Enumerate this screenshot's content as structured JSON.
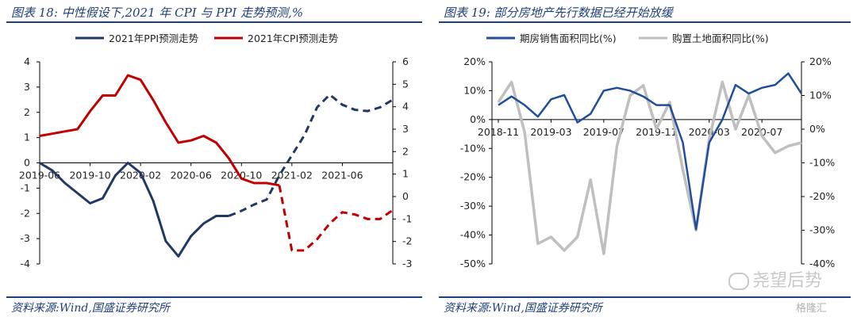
{
  "left": {
    "title": "图表 18:  中性假设下,2021 年 CPI 与 PPI 走势预测,%",
    "source": "资料来源:Wind,国盛证券研究所"
  },
  "right": {
    "title": "图表 19:  部分房地产先行数据已经开始放缓",
    "source": "资料来源:Wind,国盛证券研究所"
  },
  "watermark": "尧望后势",
  "brand": "格隆汇",
  "chart_data": [
    {
      "type": "line",
      "title": "",
      "x_tick_labels": [
        "2019-06",
        "2019-10",
        "2020-02",
        "2020-06",
        "2020-10",
        "2021-02",
        "2021-06"
      ],
      "x_tick_index": [
        0,
        4,
        8,
        12,
        16,
        20,
        24
      ],
      "left_axis": {
        "ylim": [
          -4,
          4
        ],
        "ticks": [
          -4,
          -3,
          -2,
          -1,
          0,
          1,
          2,
          3,
          4
        ]
      },
      "right_axis": {
        "ylim": [
          -3,
          6
        ],
        "ticks": [
          -3,
          -2,
          -1,
          0,
          1,
          2,
          3,
          4,
          5,
          6
        ]
      },
      "colors": {
        "ppi": "#1f3864",
        "cpi": "#c00000"
      },
      "series": [
        {
          "name": "2021年PPI预测走势",
          "axis": "left",
          "color": "#1f3864",
          "x": [
            0,
            1,
            2,
            3,
            4,
            5,
            6,
            7,
            8,
            9,
            10,
            11,
            12,
            13,
            14,
            15,
            16,
            17,
            18,
            19,
            20,
            21,
            22,
            23,
            24,
            25,
            26,
            27,
            28
          ],
          "values": [
            0.0,
            -0.3,
            -0.8,
            -1.2,
            -1.6,
            -1.4,
            -0.5,
            0.0,
            -0.4,
            -1.5,
            -3.1,
            -3.7,
            -2.9,
            -2.4,
            -2.1,
            -2.1,
            -1.9,
            -1.65,
            -1.45,
            -0.5,
            0.3,
            1.1,
            2.2,
            2.7,
            2.3,
            2.1,
            2.05,
            2.2,
            2.5
          ],
          "forecast_from_index": 15
        },
        {
          "name": "2021年CPI预测走势",
          "axis": "right",
          "color": "#c00000",
          "x": [
            0,
            1,
            2,
            3,
            4,
            5,
            6,
            7,
            8,
            9,
            10,
            11,
            12,
            13,
            14,
            15,
            16,
            17,
            18,
            19,
            20,
            21,
            22,
            23,
            24,
            25,
            26,
            27,
            28
          ],
          "values": [
            2.7,
            2.8,
            2.9,
            3.0,
            3.8,
            4.5,
            4.5,
            5.4,
            5.2,
            4.3,
            3.3,
            2.4,
            2.5,
            2.7,
            2.4,
            1.7,
            0.8,
            0.6,
            0.6,
            0.5,
            -2.4,
            -2.4,
            -1.9,
            -1.2,
            -0.7,
            -0.8,
            -1.0,
            -1.0,
            -0.6
          ],
          "forecast_from_index": 19
        }
      ],
      "legend_position": "top"
    },
    {
      "type": "line",
      "title": "",
      "x_tick_labels": [
        "2018-11",
        "2019-03",
        "2019-07",
        "2019-11",
        "2020-03",
        "2020-07"
      ],
      "x_tick_index": [
        0,
        4,
        8,
        12,
        16,
        20
      ],
      "left_axis": {
        "ylim": [
          -50,
          20
        ],
        "ticks": [
          -50,
          -40,
          -30,
          -20,
          -10,
          0,
          10,
          20
        ],
        "tick_labels": [
          "-50%",
          "-40%",
          "-30%",
          "-20%",
          "-10%",
          "0%",
          "10%",
          "20%"
        ]
      },
      "right_axis": {
        "ylim": [
          -40,
          20
        ],
        "ticks": [
          -40,
          -30,
          -20,
          -10,
          0,
          10,
          20
        ],
        "tick_labels": [
          "-40%",
          "-30%",
          "-20%",
          "-10%",
          "0%",
          "10%",
          "20%"
        ]
      },
      "series": [
        {
          "name": "期房销售面积同比(%)",
          "axis": "left",
          "color": "#1f4e9c",
          "x": [
            0,
            1,
            2,
            3,
            4,
            5,
            6,
            7,
            8,
            9,
            10,
            11,
            12,
            13,
            14,
            15,
            16,
            17,
            18,
            19,
            20,
            21,
            22,
            23
          ],
          "values": [
            5,
            8,
            5,
            1,
            7,
            8.5,
            -1,
            2,
            10,
            11,
            10,
            8,
            5,
            5,
            -8,
            -38,
            -8,
            0,
            12,
            9,
            11,
            12,
            16,
            9
          ]
        },
        {
          "name": "购置土地面积同比(%)",
          "axis": "right",
          "color": "#bfbfbf",
          "x": [
            0,
            1,
            2,
            3,
            4,
            5,
            6,
            7,
            8,
            9,
            10,
            11,
            12,
            13,
            14,
            15,
            16,
            17,
            18,
            19,
            20,
            21,
            22,
            23
          ],
          "values": [
            8,
            14,
            -1,
            -34,
            -32,
            -36,
            -32,
            -15,
            -37,
            -5,
            10,
            13,
            0,
            8,
            -12,
            -30,
            -3,
            14,
            0,
            10,
            -2,
            -7,
            -5,
            -4
          ]
        }
      ],
      "legend_position": "top"
    }
  ]
}
